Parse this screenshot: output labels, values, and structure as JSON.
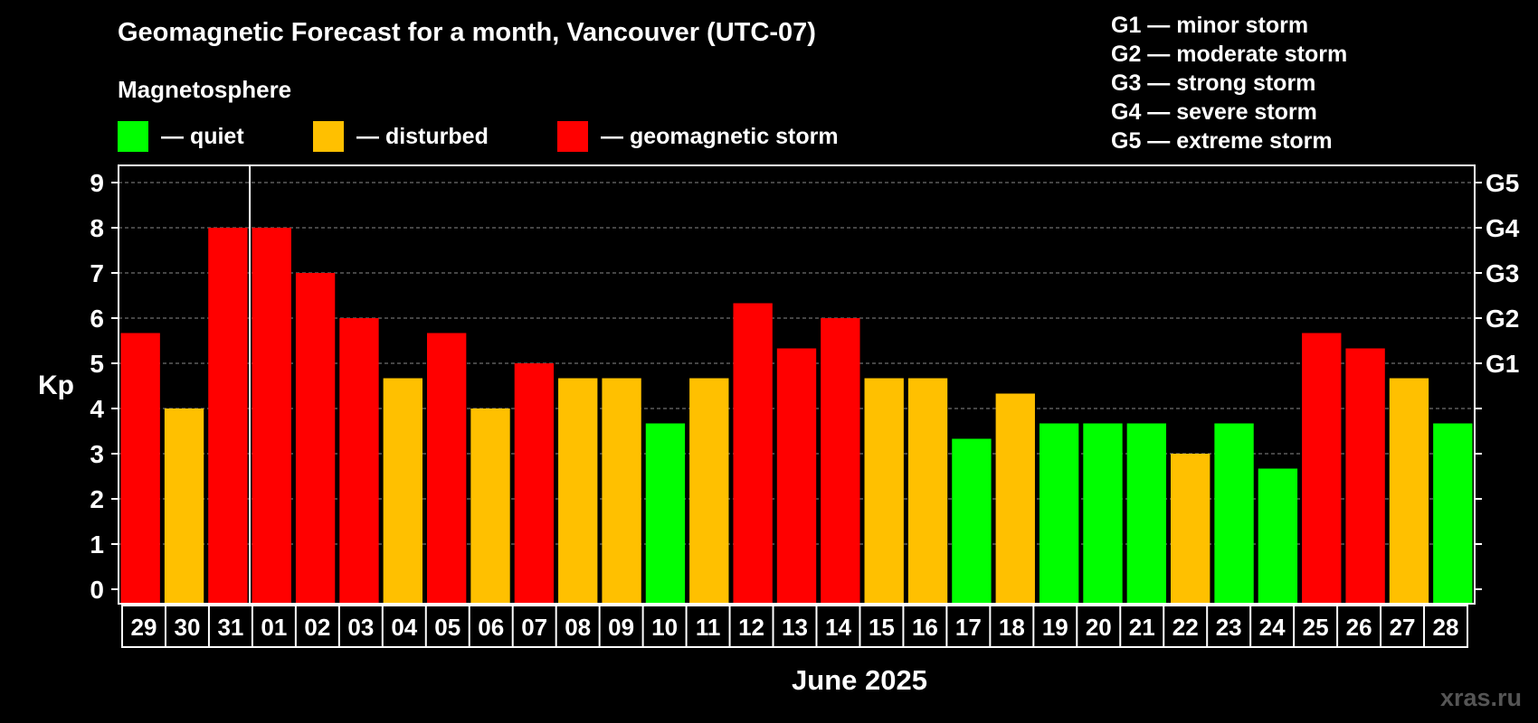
{
  "title": "Geomagnetic Forecast for a month, Vancouver (UTC-07)",
  "legend": {
    "title": "Magnetosphere",
    "items": [
      {
        "label": "— quiet",
        "color": "#00ff00"
      },
      {
        "label": "— disturbed",
        "color": "#ffc000"
      },
      {
        "label": "— geomagnetic storm",
        "color": "#ff0000"
      }
    ]
  },
  "g_scale": [
    "G1 — minor storm",
    "G2 — moderate storm",
    "G3 — strong storm",
    "G4 — severe storm",
    "G5 — extreme storm"
  ],
  "watermark": "xras.ru",
  "chart_data": {
    "type": "bar",
    "title": "Geomagnetic Forecast for a month, Vancouver (UTC-07)",
    "xlabel": "June 2025",
    "ylabel": "Kp",
    "ylim": [
      0,
      9
    ],
    "yticks": [
      "0",
      "1",
      "2",
      "3",
      "4",
      "5",
      "6",
      "7",
      "8",
      "9"
    ],
    "y2_ticks": [
      {
        "kp": 5,
        "label": "G1"
      },
      {
        "kp": 6,
        "label": "G2"
      },
      {
        "kp": 7,
        "label": "G3"
      },
      {
        "kp": 8,
        "label": "G4"
      },
      {
        "kp": 9,
        "label": "G5"
      }
    ],
    "month_boundary_after": "31",
    "categories": [
      "29",
      "30",
      "31",
      "01",
      "02",
      "03",
      "04",
      "05",
      "06",
      "07",
      "08",
      "09",
      "10",
      "11",
      "12",
      "13",
      "14",
      "15",
      "16",
      "17",
      "18",
      "19",
      "20",
      "21",
      "22",
      "23",
      "24",
      "25",
      "26",
      "27",
      "28"
    ],
    "values": [
      5.67,
      4.0,
      8.0,
      8.0,
      7.0,
      6.0,
      4.67,
      5.67,
      4.0,
      5.0,
      4.67,
      4.67,
      3.67,
      4.67,
      6.33,
      5.33,
      6.0,
      4.67,
      4.67,
      3.33,
      4.33,
      3.67,
      3.67,
      3.67,
      3.0,
      3.67,
      2.67,
      5.67,
      5.33,
      4.67,
      3.67
    ],
    "levels": [
      "storm",
      "disturbed",
      "storm",
      "storm",
      "storm",
      "storm",
      "disturbed",
      "storm",
      "disturbed",
      "storm",
      "disturbed",
      "disturbed",
      "quiet",
      "disturbed",
      "storm",
      "storm",
      "storm",
      "disturbed",
      "disturbed",
      "quiet",
      "disturbed",
      "quiet",
      "quiet",
      "quiet",
      "disturbed",
      "quiet",
      "quiet",
      "storm",
      "storm",
      "disturbed",
      "quiet"
    ],
    "level_colors": {
      "quiet": "#00ff00",
      "disturbed": "#ffc000",
      "storm": "#ff0000"
    }
  }
}
